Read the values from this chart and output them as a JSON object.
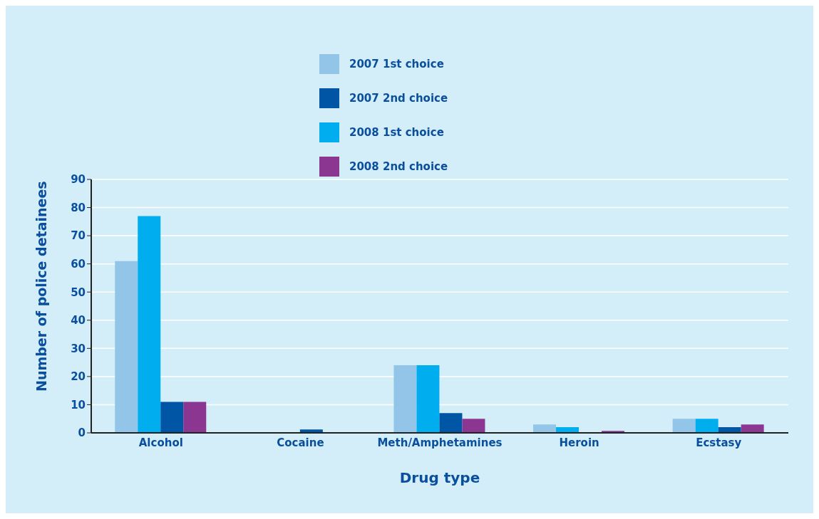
{
  "chart_data": {
    "type": "bar",
    "xlabel": "Drug type",
    "ylabel": "Number of police detainees",
    "categories": [
      "Alcohol",
      "Cocaine",
      "Meth/Amphetamines",
      "Heroin",
      "Ecstasy"
    ],
    "series": [
      {
        "name": "2007 1st choice",
        "color": "#93c5e8",
        "values": [
          61,
          0,
          24,
          3,
          5
        ]
      },
      {
        "name": "2008 1st choice",
        "color": "#00aeef",
        "values": [
          77,
          0,
          24,
          2,
          5
        ]
      },
      {
        "name": "2007 2nd choice",
        "color": "#0055a5",
        "values": [
          11,
          1.2,
          7,
          0,
          2
        ]
      },
      {
        "name": "2008 2nd choice",
        "color": "#8b3691",
        "values": [
          11,
          0,
          5,
          0.7,
          3
        ]
      }
    ],
    "ylim": [
      0,
      90
    ],
    "yticks": [
      0,
      10,
      20,
      30,
      40,
      50,
      60,
      70,
      80,
      90
    ],
    "grid": "y",
    "legend": "top"
  }
}
